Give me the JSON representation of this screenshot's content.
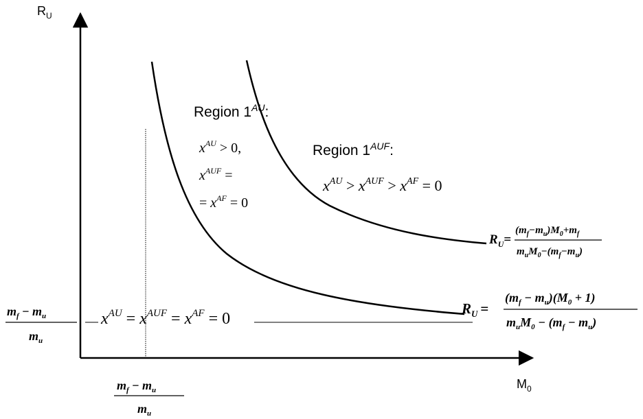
{
  "axes": {
    "y_label": {
      "base": "R",
      "sub": "U"
    },
    "x_label": {
      "base": "M",
      "sub": "0"
    }
  },
  "fraction": {
    "num_a": "m",
    "num_a_sub": "f",
    "minus": "−",
    "num_b": "m",
    "num_b_sub": "u",
    "den": "m",
    "den_sub": "u"
  },
  "region_1au": {
    "title": "Region 1",
    "title_sup": "AU",
    "title_suffix": ":",
    "line1": {
      "x": "x",
      "sup": "AU",
      "rest": " > 0,"
    },
    "line2": {
      "x": "x",
      "sup": "AUF",
      "rest": "  ="
    },
    "line3": {
      "lead": "= ",
      "x": "x",
      "sup": "AF",
      "rest": "  = 0"
    }
  },
  "region_1auf": {
    "title": "Region 1",
    "title_sup": "AUF",
    "title_suffix": ":",
    "ineq": {
      "x1": "x",
      "s1": "AU",
      "gt1": " > ",
      "x2": "x",
      "s2": "AUF",
      "gt2": " > ",
      "x3": "x",
      "s3": "AF",
      "end": " = 0"
    }
  },
  "region_zero": {
    "x1": "x",
    "s1": "AU",
    "eq1": " = ",
    "x2": "x",
    "s2": "AUF",
    "eq2": " = ",
    "x3": "x",
    "s3": "AF",
    "end": " = 0"
  },
  "formula_upper": {
    "lhs": "R",
    "lhs_sub": "U",
    "eq": "=",
    "num": {
      "p1": "(m",
      "s1": "f",
      "p2": "−m",
      "s2": "u",
      "p3": ")M",
      "s3": "0",
      "p4": "+m",
      "s4": "f"
    },
    "den": {
      "p1": "m",
      "s1": "u",
      "p2": "M",
      "s2": "0",
      "p3": "−(m",
      "s3": "f",
      "p4": "−m",
      "s4": "u",
      "p5": ")"
    }
  },
  "formula_lower": {
    "lhs": "R",
    "lhs_sub": "U",
    "eq": "=",
    "num": {
      "p1": "(m",
      "s1": "f",
      "p2": " − m",
      "s2": "u",
      "p3": ")(M",
      "s3": "0",
      "p4": " + 1)"
    },
    "den": {
      "p1": "m",
      "s1": "u",
      "p2": "M",
      "s2": "0",
      "p3": " − (m",
      "s3": "f",
      "p4": " − m",
      "s4": "u",
      "p5": ")"
    }
  }
}
